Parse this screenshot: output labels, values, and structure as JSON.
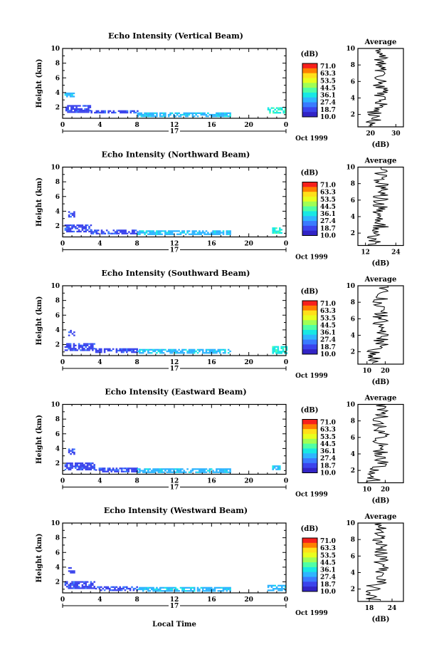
{
  "figure": {
    "xlabel": "Local Time"
  },
  "colorbar": {
    "unit_label": "(dB)",
    "levels": [
      "71.0",
      "63.3",
      "53.5",
      "44.5",
      "36.1",
      "27.4",
      "18.7",
      "10.0"
    ],
    "colors": [
      "#f7201c",
      "#ff7f00",
      "#ffe01a",
      "#e8ff1e",
      "#a0ff55",
      "#4fffa5",
      "#18e8e4",
      "#2fb5ff",
      "#3a7bff",
      "#3b44ec",
      "#3224c6"
    ]
  },
  "chart_data": [
    {
      "type": "heatmap",
      "title": "Echo Intensity (Vertical Beam)",
      "ylabel": "Height (km)",
      "x_ticks": [
        "0",
        "4",
        "8",
        "12",
        "16",
        "20",
        "0"
      ],
      "y_ticks": [
        "2",
        "4",
        "6",
        "8",
        "10"
      ],
      "xlim": [
        0,
        24
      ],
      "ylim": [
        0.5,
        10
      ],
      "day_label": "17",
      "date_label": "Oct 1999",
      "echo_regions": [
        {
          "x": [
            0.2,
            1.3
          ],
          "y": [
            3.5,
            4.0
          ],
          "level": "27.4"
        },
        {
          "x": [
            0.3,
            3.0
          ],
          "y": [
            1.3,
            2.3
          ],
          "level": "18.7"
        },
        {
          "x": [
            3.0,
            8.0
          ],
          "y": [
            1.2,
            1.6
          ],
          "level": "18.7"
        },
        {
          "x": [
            8.0,
            18.0
          ],
          "y": [
            0.8,
            1.3
          ],
          "level": "27.4"
        },
        {
          "x": [
            22.0,
            24.0
          ],
          "y": [
            1.2,
            2.0
          ],
          "level": "36.1"
        }
      ],
      "average": {
        "title": "Average",
        "xlabel": "(dB)",
        "x_ticks": [
          "20",
          "30"
        ],
        "y_ticks": [
          "2",
          "4",
          "6",
          "8",
          "10"
        ],
        "xlim": [
          15,
          33
        ]
      }
    },
    {
      "type": "heatmap",
      "title": "Echo Intensity (Northward Beam)",
      "ylabel": "Height (km)",
      "x_ticks": [
        "0",
        "4",
        "8",
        "12",
        "16",
        "20",
        "0"
      ],
      "y_ticks": [
        "2",
        "4",
        "6",
        "8",
        "10"
      ],
      "xlim": [
        0,
        24
      ],
      "ylim": [
        0.5,
        10
      ],
      "day_label": "17",
      "date_label": "Oct 1999",
      "echo_regions": [
        {
          "x": [
            0.6,
            1.3
          ],
          "y": [
            3.3,
            4.0
          ],
          "level": "18.7"
        },
        {
          "x": [
            0.2,
            3.0
          ],
          "y": [
            1.3,
            2.2
          ],
          "level": "18.7"
        },
        {
          "x": [
            3.0,
            8.0
          ],
          "y": [
            0.9,
            1.5
          ],
          "level": "18.7"
        },
        {
          "x": [
            8.0,
            18.0
          ],
          "y": [
            0.8,
            1.4
          ],
          "level": "27.4"
        },
        {
          "x": [
            22.5,
            23.5
          ],
          "y": [
            1.0,
            1.8
          ],
          "level": "36.1"
        }
      ],
      "average": {
        "title": "Average",
        "xlabel": "(dB)",
        "x_ticks": [
          "12",
          "24"
        ],
        "y_ticks": [
          "2",
          "4",
          "6",
          "8",
          "10"
        ],
        "xlim": [
          9,
          27
        ]
      }
    },
    {
      "type": "heatmap",
      "title": "Echo Intensity (Southward Beam)",
      "ylabel": "Height (km)",
      "x_ticks": [
        "0",
        "4",
        "8",
        "12",
        "16",
        "20",
        "0"
      ],
      "y_ticks": [
        "2",
        "4",
        "6",
        "8",
        "10"
      ],
      "xlim": [
        0,
        24
      ],
      "ylim": [
        0.5,
        10
      ],
      "day_label": "17",
      "date_label": "Oct 1999",
      "echo_regions": [
        {
          "x": [
            0.6,
            1.2
          ],
          "y": [
            3.3,
            4.0
          ],
          "level": "18.7"
        },
        {
          "x": [
            0.2,
            3.5
          ],
          "y": [
            1.2,
            2.2
          ],
          "level": "18.7"
        },
        {
          "x": [
            3.5,
            8.0
          ],
          "y": [
            0.9,
            1.5
          ],
          "level": "18.7"
        },
        {
          "x": [
            8.0,
            18.0
          ],
          "y": [
            0.8,
            1.4
          ],
          "level": "27.4"
        },
        {
          "x": [
            22.5,
            24.0
          ],
          "y": [
            0.9,
            1.8
          ],
          "level": "36.1"
        }
      ],
      "average": {
        "title": "Average",
        "xlabel": "(dB)",
        "x_ticks": [
          "10",
          "20"
        ],
        "y_ticks": [
          "2",
          "4",
          "6",
          "8",
          "10"
        ],
        "xlim": [
          5,
          30
        ]
      }
    },
    {
      "type": "heatmap",
      "title": "Echo Intensity (Eastward Beam)",
      "ylabel": "Height (km)",
      "x_ticks": [
        "0",
        "4",
        "8",
        "12",
        "16",
        "20",
        "0"
      ],
      "y_ticks": [
        "2",
        "4",
        "6",
        "8",
        "10"
      ],
      "xlim": [
        0,
        24
      ],
      "ylim": [
        0.5,
        10
      ],
      "day_label": "17",
      "date_label": "Oct 1999",
      "echo_regions": [
        {
          "x": [
            0.6,
            1.2
          ],
          "y": [
            3.3,
            4.0
          ],
          "level": "18.7"
        },
        {
          "x": [
            0.2,
            3.5
          ],
          "y": [
            1.2,
            2.1
          ],
          "level": "18.7"
        },
        {
          "x": [
            3.5,
            8.0
          ],
          "y": [
            0.9,
            1.4
          ],
          "level": "18.7"
        },
        {
          "x": [
            8.0,
            18.0
          ],
          "y": [
            0.8,
            1.3
          ],
          "level": "27.4"
        },
        {
          "x": [
            22.5,
            23.5
          ],
          "y": [
            1.2,
            1.7
          ],
          "level": "27.4"
        }
      ],
      "average": {
        "title": "Average",
        "xlabel": "(dB)",
        "x_ticks": [
          "10",
          "20"
        ],
        "y_ticks": [
          "2",
          "4",
          "6",
          "8",
          "10"
        ],
        "xlim": [
          5,
          30
        ]
      }
    },
    {
      "type": "heatmap",
      "title": "Echo Intensity (Westward Beam)",
      "ylabel": "Height (km)",
      "x_ticks": [
        "0",
        "4",
        "8",
        "12",
        "16",
        "20",
        "0"
      ],
      "y_ticks": [
        "2",
        "4",
        "6",
        "8",
        "10"
      ],
      "xlim": [
        0,
        24
      ],
      "ylim": [
        0.5,
        10
      ],
      "day_label": "17",
      "date_label": "Oct 1999",
      "echo_regions": [
        {
          "x": [
            0.6,
            1.2
          ],
          "y": [
            3.3,
            4.0
          ],
          "level": "18.7"
        },
        {
          "x": [
            0.2,
            3.5
          ],
          "y": [
            1.2,
            2.1
          ],
          "level": "18.7"
        },
        {
          "x": [
            3.5,
            8.0
          ],
          "y": [
            0.9,
            1.4
          ],
          "level": "18.7"
        },
        {
          "x": [
            8.0,
            18.0
          ],
          "y": [
            0.8,
            1.3
          ],
          "level": "27.4"
        },
        {
          "x": [
            22.0,
            24.0
          ],
          "y": [
            0.8,
            1.6
          ],
          "level": "27.4"
        }
      ],
      "average": {
        "title": "Average",
        "xlabel": "(dB)",
        "x_ticks": [
          "18",
          "24"
        ],
        "y_ticks": [
          "2",
          "4",
          "6",
          "8",
          "10"
        ],
        "xlim": [
          15,
          27
        ]
      }
    }
  ]
}
